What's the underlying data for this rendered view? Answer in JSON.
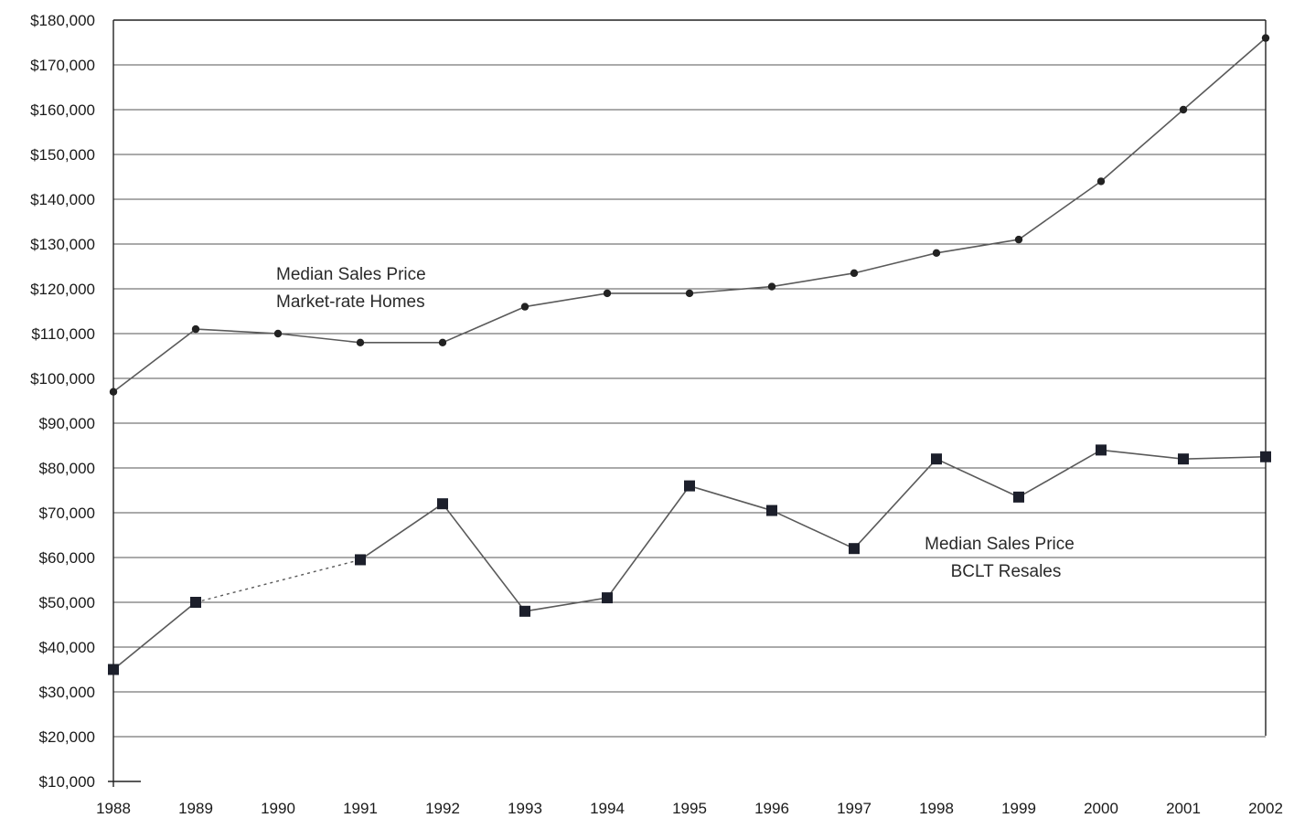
{
  "chart_data": {
    "type": "line",
    "title": "",
    "xlabel": "",
    "ylabel": "",
    "x": [
      "1988",
      "1989",
      "1990",
      "1991",
      "1992",
      "1993",
      "1994",
      "1995",
      "1996",
      "1997",
      "1998",
      "1999",
      "2000",
      "2001",
      "2002"
    ],
    "ylim": [
      10000,
      180000
    ],
    "yticks": [
      10000,
      20000,
      30000,
      40000,
      50000,
      60000,
      70000,
      80000,
      90000,
      100000,
      110000,
      120000,
      130000,
      140000,
      150000,
      160000,
      170000,
      180000
    ],
    "ytick_labels": [
      "$10,000",
      "$20,000",
      "$30,000",
      "$40,000",
      "$50,000",
      "$60,000",
      "$70,000",
      "$80,000",
      "$90,000",
      "$100,000",
      "$110,000",
      "$120,000",
      "$130,000",
      "$140,000",
      "$150,000",
      "$160,000",
      "$170,000",
      "$180,000"
    ],
    "grid": true,
    "legend": "none",
    "series": [
      {
        "label_lines": [
          "Median Sales Price",
          "Market-rate Homes"
        ],
        "marker": "circle",
        "values": [
          97000,
          111000,
          110000,
          108000,
          108000,
          116000,
          119000,
          119000,
          120500,
          123500,
          128000,
          131000,
          144000,
          160000,
          176000
        ]
      },
      {
        "label_lines": [
          "Median Sales Price",
          "BCLT Resales"
        ],
        "marker": "square",
        "values": [
          35000,
          50000,
          null,
          59500,
          72000,
          48000,
          51000,
          76000,
          70500,
          62000,
          82000,
          73500,
          84000,
          82000,
          82500
        ],
        "annotation": "dotted segment from 1989 to 1991 (no 1990 value)"
      }
    ]
  }
}
